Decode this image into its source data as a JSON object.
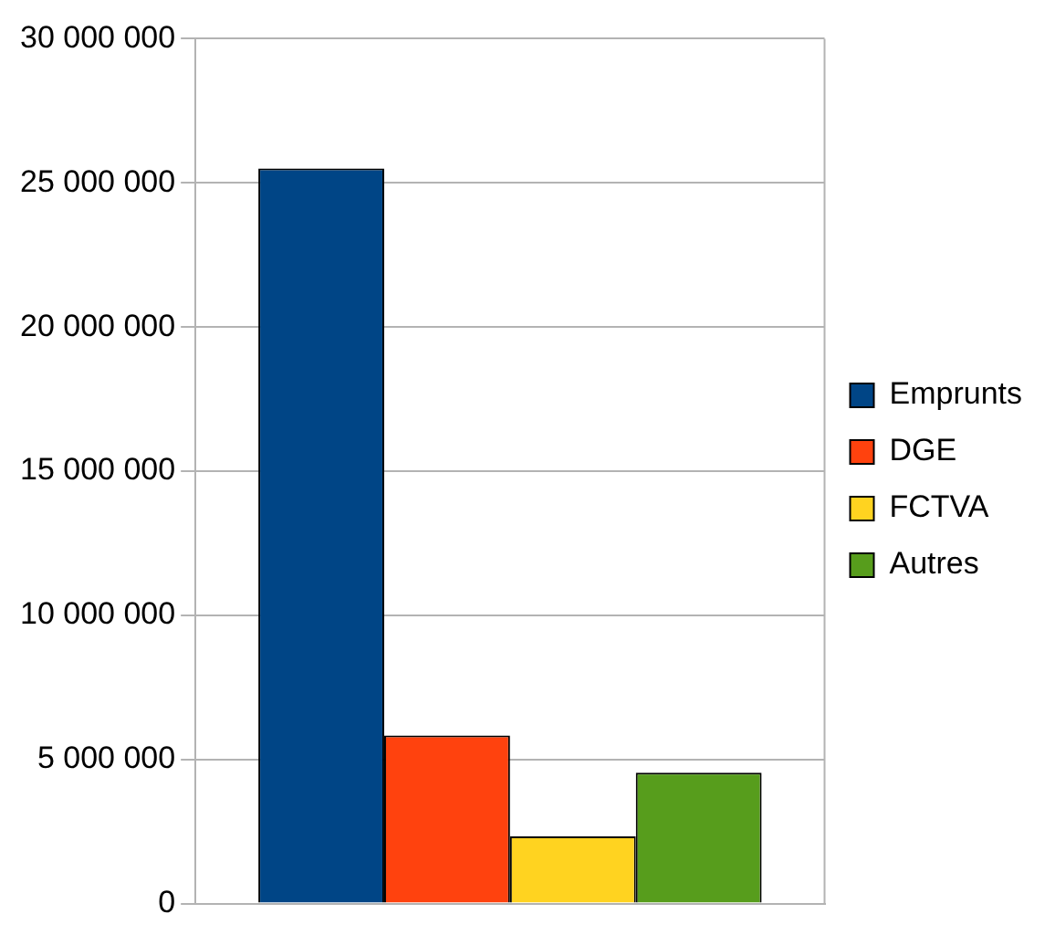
{
  "chart_data": {
    "type": "bar",
    "categories": [
      null
    ],
    "series": [
      {
        "name": "Emprunts",
        "color": "#004586",
        "values": [
          25500000
        ]
      },
      {
        "name": "DGE",
        "color": "#ff420e",
        "values": [
          5830000
        ]
      },
      {
        "name": "FCTVA",
        "color": "#ffd320",
        "values": [
          2330000
        ]
      },
      {
        "name": "Autres",
        "color": "#579d1c",
        "values": [
          4540000
        ]
      }
    ],
    "ylim": [
      0,
      30000000
    ],
    "yticks": [
      {
        "value": 0,
        "label": "0"
      },
      {
        "value": 5000000,
        "label": "5 000 000"
      },
      {
        "value": 10000000,
        "label": "10 000 000"
      },
      {
        "value": 15000000,
        "label": "15 000 000"
      },
      {
        "value": 20000000,
        "label": "20 000 000"
      },
      {
        "value": 25000000,
        "label": "25 000 000"
      },
      {
        "value": 30000000,
        "label": "30 000 000"
      }
    ],
    "grid": "y",
    "legend": "right"
  }
}
